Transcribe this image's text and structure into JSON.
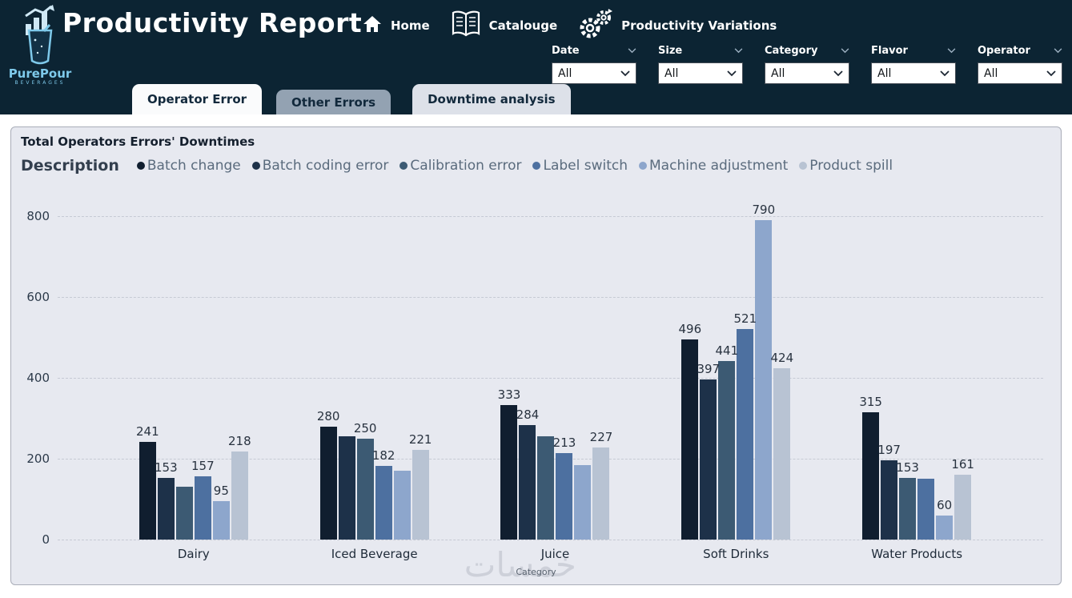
{
  "colors": {
    "header_bg": "#0c2433",
    "brand_blue": "#7ec9ea",
    "card_bg": "#e7e9f0",
    "tab_active_bg": "#fafbfc",
    "tab_muted_bg": "#93a2b2",
    "tab_light_bg": "#dde1e9"
  },
  "header": {
    "logo": {
      "brand": "PurePour",
      "sub": "BEVERAGES"
    },
    "title": "Productivity Report",
    "nav": [
      {
        "icon": "home-icon",
        "label": "Home"
      },
      {
        "icon": "catalogue-icon",
        "label": "Catalouge"
      },
      {
        "icon": "gears-icon",
        "label": "Productivity Variations"
      }
    ],
    "filters": [
      {
        "label": "Date",
        "value": "All"
      },
      {
        "label": "Size",
        "value": "All"
      },
      {
        "label": "Category",
        "value": "All"
      },
      {
        "label": "Flavor",
        "value": "All"
      },
      {
        "label": "Operator",
        "value": "All"
      }
    ],
    "tabs": [
      {
        "label": "Operator Error",
        "active": true
      },
      {
        "label": "Other Errors",
        "active": false
      },
      {
        "label": "Downtime analysis",
        "active": false
      }
    ]
  },
  "watermark": "خمسات",
  "chart_data": {
    "type": "bar",
    "title": "Total Operators Errors' Downtimes",
    "legend_title": "Description",
    "legend_position": "top",
    "xlabel": "Category",
    "ylabel": "",
    "ylim": [
      0,
      800
    ],
    "yticks": [
      0,
      200,
      400,
      600,
      800
    ],
    "grid": "dashed-horizontal",
    "categories": [
      "Dairy",
      "Iced Beverage",
      "Juice",
      "Soft Drinks",
      "Water Products"
    ],
    "series": [
      {
        "name": "Batch change",
        "color": "#101e2f",
        "values": [
          241,
          280,
          333,
          496,
          315
        ],
        "labels": [
          "241",
          "280",
          "333",
          "496",
          "315"
        ]
      },
      {
        "name": "Batch coding error",
        "color": "#1d3149",
        "values": [
          153,
          255,
          284,
          397,
          197
        ],
        "labels": [
          "153",
          "",
          "284",
          "397",
          "197"
        ]
      },
      {
        "name": "Calibration error",
        "color": "#3c5a73",
        "values": [
          130,
          250,
          255,
          441,
          153
        ],
        "labels": [
          "",
          "250",
          "",
          "441",
          "153"
        ]
      },
      {
        "name": "Label switch",
        "color": "#4d70a0",
        "values": [
          157,
          182,
          213,
          521,
          150
        ],
        "labels": [
          "157",
          "182",
          "213",
          "521",
          ""
        ]
      },
      {
        "name": "Machine adjustment",
        "color": "#8da6cc",
        "values": [
          95,
          170,
          185,
          790,
          60
        ],
        "labels": [
          "95",
          "",
          "",
          "790",
          "60"
        ]
      },
      {
        "name": "Product spill",
        "color": "#b8c3d3",
        "values": [
          218,
          221,
          227,
          424,
          161
        ],
        "labels": [
          "218",
          "221",
          "227",
          "424",
          "161"
        ]
      }
    ]
  }
}
